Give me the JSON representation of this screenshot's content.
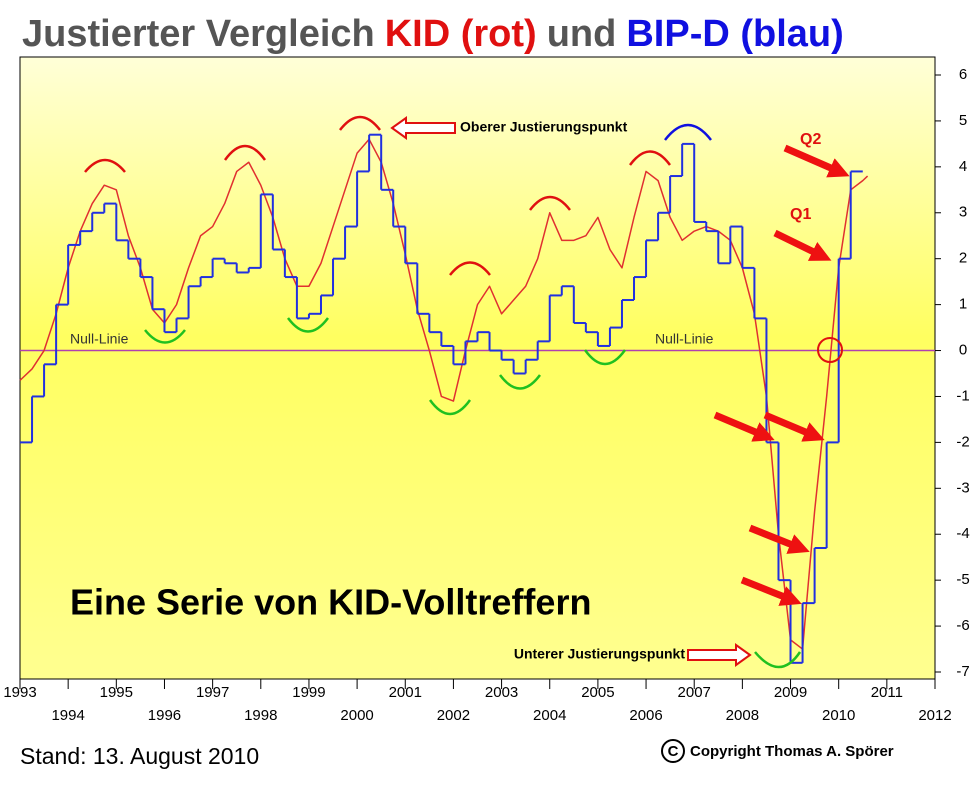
{
  "chart_data": {
    "type": "line",
    "title_parts": [
      {
        "text": "Justierter Vergleich",
        "color": "#555555"
      },
      {
        "text": "KID (rot)",
        "color": "#e01010"
      },
      {
        "text": "und",
        "color": "#555555"
      },
      {
        "text": "BIP-D (blau)",
        "color": "#1010e0"
      }
    ],
    "headline": "Eine Serie von KID-Volltreffern",
    "annotations": [
      "Null-Linie",
      "Null-Linie",
      "Oberer Justierungspunkt",
      "Unterer Justierungspunkt",
      "Q2",
      "Q1"
    ],
    "footer_left": "Stand: 13. August 2010",
    "copyright_symbol": "C",
    "footer_right": "Copyright Thomas A. Spörer",
    "xlim": [
      1993,
      2012
    ],
    "xticks": [
      1993,
      1994,
      1995,
      1996,
      1997,
      1998,
      1999,
      2000,
      2001,
      2002,
      2003,
      2004,
      2005,
      2006,
      2007,
      2008,
      2009,
      2010,
      2011,
      2012
    ],
    "ylim": [
      -7,
      6
    ],
    "yticks": [
      -7,
      -6,
      -5,
      -4,
      -3,
      -2,
      -1,
      0,
      1,
      2,
      3,
      4,
      5,
      6
    ],
    "zero_line_color": "#b040b0",
    "series": [
      {
        "color": "#e03030",
        "style": "smooth",
        "x": [
          1993,
          1993.25,
          1993.5,
          1993.75,
          1994,
          1994.25,
          1994.5,
          1994.75,
          1995,
          1995.25,
          1995.5,
          1995.75,
          1996,
          1996.25,
          1996.5,
          1996.75,
          1997,
          1997.25,
          1997.5,
          1997.75,
          1998,
          1998.25,
          1998.5,
          1998.75,
          1999,
          1999.25,
          1999.5,
          1999.75,
          2000,
          2000.25,
          2000.5,
          2000.75,
          2001,
          2001.25,
          2001.5,
          2001.75,
          2002,
          2002.25,
          2002.5,
          2002.75,
          2003,
          2003.25,
          2003.5,
          2003.75,
          2004,
          2004.25,
          2004.5,
          2004.75,
          2005,
          2005.25,
          2005.5,
          2005.75,
          2006,
          2006.25,
          2006.5,
          2006.75,
          2007,
          2007.25,
          2007.5,
          2007.75,
          2008,
          2008.25,
          2008.5,
          2008.75,
          2009,
          2009.25,
          2009.5,
          2009.75,
          2010,
          2010.25,
          2010.5,
          2010.6
        ],
        "values": [
          -0.65,
          -0.4,
          0.0,
          0.8,
          1.8,
          2.6,
          3.2,
          3.6,
          3.5,
          2.5,
          1.8,
          0.9,
          0.6,
          1.0,
          1.8,
          2.5,
          2.7,
          3.2,
          3.9,
          4.1,
          3.6,
          2.9,
          2.0,
          1.4,
          1.4,
          1.9,
          2.7,
          3.5,
          4.3,
          4.6,
          4.1,
          3.2,
          2.1,
          0.9,
          0.0,
          -1.0,
          -1.1,
          0.0,
          1.0,
          1.4,
          0.8,
          1.1,
          1.4,
          2.0,
          3.0,
          2.4,
          2.4,
          2.5,
          2.9,
          2.2,
          1.8,
          2.9,
          3.9,
          3.7,
          2.9,
          2.4,
          2.6,
          2.7,
          2.6,
          2.4,
          1.8,
          0.8,
          -1.0,
          -4.0,
          -6.3,
          -6.5,
          -3.5,
          -1.0,
          1.8,
          3.5,
          3.7,
          3.8
        ]
      },
      {
        "color": "#2030e0",
        "style": "step",
        "x": [
          1993,
          1993.25,
          1993.5,
          1993.75,
          1994,
          1994.25,
          1994.5,
          1994.75,
          1995,
          1995.25,
          1995.5,
          1995.75,
          1996,
          1996.25,
          1996.5,
          1996.75,
          1997,
          1997.25,
          1997.5,
          1997.75,
          1998,
          1998.25,
          1998.5,
          1998.75,
          1999,
          1999.25,
          1999.5,
          1999.75,
          2000,
          2000.25,
          2000.5,
          2000.75,
          2001,
          2001.25,
          2001.5,
          2001.75,
          2002,
          2002.25,
          2002.5,
          2002.75,
          2003,
          2003.25,
          2003.5,
          2003.75,
          2004,
          2004.25,
          2004.5,
          2004.75,
          2005,
          2005.25,
          2005.5,
          2005.75,
          2006,
          2006.25,
          2006.5,
          2006.75,
          2007,
          2007.25,
          2007.5,
          2007.75,
          2008,
          2008.25,
          2008.5,
          2008.75,
          2009,
          2009.25,
          2009.5,
          2009.75,
          2010,
          2010.25
        ],
        "values": [
          -2.0,
          -1.0,
          -0.3,
          1.0,
          2.3,
          2.6,
          3.0,
          3.2,
          2.4,
          2.0,
          1.6,
          0.9,
          0.4,
          0.7,
          1.4,
          1.6,
          2.0,
          1.9,
          1.7,
          1.8,
          3.4,
          2.2,
          1.6,
          0.7,
          0.8,
          1.2,
          2.0,
          2.7,
          3.9,
          4.7,
          3.5,
          2.7,
          1.9,
          0.8,
          0.4,
          0.1,
          -0.3,
          0.2,
          0.4,
          0.0,
          -0.2,
          -0.5,
          -0.2,
          0.2,
          1.2,
          1.4,
          0.6,
          0.4,
          0.1,
          0.5,
          1.1,
          1.6,
          2.4,
          3.0,
          3.8,
          4.5,
          2.8,
          2.6,
          1.9,
          2.7,
          1.8,
          0.7,
          -2.0,
          -5.0,
          -6.8,
          -5.5,
          -4.3,
          -2.0,
          2.0,
          3.9
        ]
      }
    ]
  }
}
